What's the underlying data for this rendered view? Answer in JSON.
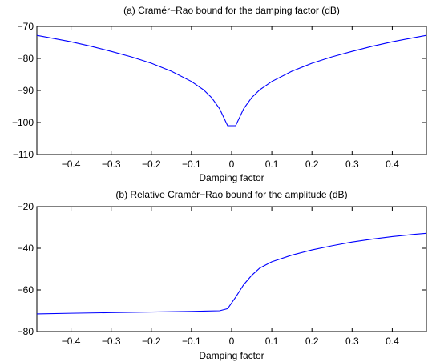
{
  "chart_data": [
    {
      "type": "line",
      "title": "(a) Cramér−Rao bound for the damping factor (dB)",
      "xlabel": "Damping factor",
      "ylabel": "",
      "xlim": [
        -0.485,
        0.485
      ],
      "ylim": [
        -110,
        -70
      ],
      "xticks": [
        -0.4,
        -0.3,
        -0.2,
        -0.1,
        0,
        0.1,
        0.2,
        0.3,
        0.4
      ],
      "xtick_labels": [
        "−0.4",
        "−0.3",
        "−0.2",
        "−0.1",
        "0",
        "0.1",
        "0.2",
        "0.3",
        "0.4"
      ],
      "yticks": [
        -110,
        -100,
        -90,
        -80,
        -70
      ],
      "ytick_labels": [
        "−110",
        "−100",
        "−90",
        "−80",
        "−70"
      ],
      "grid": false,
      "series": [
        {
          "color": "#0000ff",
          "x": [
            -0.485,
            -0.45,
            -0.4,
            -0.35,
            -0.3,
            -0.25,
            -0.2,
            -0.15,
            -0.1,
            -0.07,
            -0.05,
            -0.03,
            -0.01,
            0.01,
            0.03,
            0.05,
            0.07,
            0.1,
            0.15,
            0.2,
            0.25,
            0.3,
            0.35,
            0.4,
            0.45,
            0.485
          ],
          "y": [
            -72.8,
            -73.6,
            -74.8,
            -76.2,
            -77.8,
            -79.5,
            -81.5,
            -84.0,
            -87.2,
            -89.8,
            -92.2,
            -95.7,
            -101.0,
            -101.0,
            -95.7,
            -92.2,
            -89.8,
            -87.2,
            -84.0,
            -81.5,
            -79.5,
            -77.8,
            -76.2,
            -74.8,
            -73.6,
            -72.8
          ]
        }
      ]
    },
    {
      "type": "line",
      "title": "(b) Relative Cramér−Rao bound for the amplitude (dB)",
      "xlabel": "Damping factor",
      "ylabel": "",
      "xlim": [
        -0.485,
        0.485
      ],
      "ylim": [
        -80,
        -20
      ],
      "xticks": [
        -0.4,
        -0.3,
        -0.2,
        -0.1,
        0,
        0.1,
        0.2,
        0.3,
        0.4
      ],
      "xtick_labels": [
        "−0.4",
        "−0.3",
        "−0.2",
        "−0.1",
        "0",
        "0.1",
        "0.2",
        "0.3",
        "0.4"
      ],
      "yticks": [
        -80,
        -60,
        -40,
        -20
      ],
      "ytick_labels": [
        "−80",
        "−60",
        "−40",
        "−20"
      ],
      "grid": false,
      "series": [
        {
          "color": "#0000ff",
          "x": [
            -0.485,
            -0.4,
            -0.3,
            -0.2,
            -0.1,
            -0.03,
            -0.01,
            0.01,
            0.03,
            0.05,
            0.07,
            0.1,
            0.15,
            0.2,
            0.25,
            0.3,
            0.35,
            0.4,
            0.45,
            0.485
          ],
          "y": [
            -71.5,
            -71.2,
            -70.9,
            -70.6,
            -70.3,
            -70.0,
            -69.0,
            -63.5,
            -57.5,
            -53.0,
            -49.5,
            -46.5,
            -43.3,
            -40.8,
            -38.8,
            -37.0,
            -35.6,
            -34.4,
            -33.4,
            -32.8
          ]
        }
      ]
    }
  ]
}
